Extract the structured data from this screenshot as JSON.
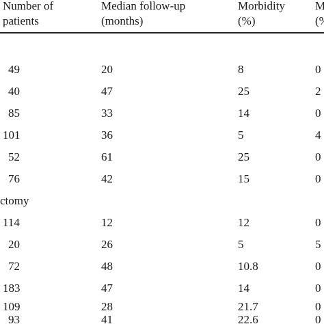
{
  "table": {
    "columns": [
      {
        "line1": "Number of",
        "line2": "patients"
      },
      {
        "line1": "Median follow-up",
        "line2": "(months)"
      },
      {
        "line1": "Morbidity",
        "line2": "(%)"
      },
      {
        "line1": "M",
        "line2": "(%"
      }
    ],
    "section_label": "ctomy",
    "group1": [
      {
        "patients": "49",
        "followup": "20",
        "morbidity": "8",
        "mortality": "0"
      },
      {
        "patients": "40",
        "followup": "47",
        "morbidity": "25",
        "mortality": "2"
      },
      {
        "patients": "85",
        "followup": "33",
        "morbidity": "14",
        "mortality": "0"
      },
      {
        "patients": "101",
        "followup": "36",
        "morbidity": "5",
        "mortality": "4"
      },
      {
        "patients": "52",
        "followup": "61",
        "morbidity": "25",
        "mortality": "0"
      },
      {
        "patients": "76",
        "followup": "42",
        "morbidity": "15",
        "mortality": "0"
      }
    ],
    "group2": [
      {
        "patients": "114",
        "followup": "12",
        "morbidity": "12",
        "mortality": "0"
      },
      {
        "patients": "20",
        "followup": "26",
        "morbidity": "5",
        "mortality": "5"
      },
      {
        "patients": "72",
        "followup": "48",
        "morbidity": "10.8",
        "mortality": "0"
      },
      {
        "patients": "183",
        "followup": "47",
        "morbidity": "14",
        "mortality": "0"
      },
      {
        "patients": "109",
        "followup": "28",
        "morbidity": "21.7",
        "mortality": "0"
      },
      {
        "patients": "93",
        "followup": "41",
        "morbidity": "22.6",
        "mortality": "0"
      }
    ]
  }
}
